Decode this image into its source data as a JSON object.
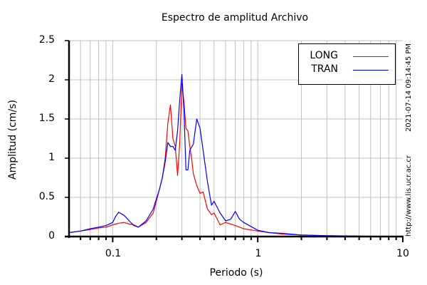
{
  "chart_data": {
    "type": "line",
    "title": "Espectro de amplitud Archivo",
    "xlabel": "Periodo (s)",
    "ylabel": "Amplitud (cm/s)",
    "xscale": "log",
    "xlim": [
      0.05,
      10
    ],
    "ylim": [
      0,
      2.5
    ],
    "grid": true,
    "legend_position": "upper right",
    "x_ticks": [
      "0.1",
      "1",
      "10"
    ],
    "y_ticks": [
      "0",
      "0.5",
      "1",
      "1.5",
      "2",
      "2.5"
    ],
    "series": [
      {
        "name": "LONG",
        "color": "#ff0000",
        "x": [
          0.05,
          0.06,
          0.07,
          0.08,
          0.09,
          0.1,
          0.11,
          0.12,
          0.13,
          0.14,
          0.15,
          0.17,
          0.19,
          0.2,
          0.21,
          0.22,
          0.23,
          0.24,
          0.25,
          0.26,
          0.27,
          0.28,
          0.29,
          0.3,
          0.31,
          0.32,
          0.33,
          0.34,
          0.35,
          0.36,
          0.38,
          0.4,
          0.42,
          0.45,
          0.48,
          0.5,
          0.55,
          0.6,
          0.7,
          0.8,
          1.0,
          1.2,
          1.5,
          2.0,
          3.0,
          5.0,
          10.0
        ],
        "values": [
          0.05,
          0.07,
          0.09,
          0.11,
          0.12,
          0.15,
          0.17,
          0.18,
          0.16,
          0.15,
          0.12,
          0.18,
          0.3,
          0.45,
          0.6,
          0.75,
          1.0,
          1.45,
          1.68,
          1.25,
          1.15,
          0.78,
          1.2,
          1.95,
          1.72,
          1.38,
          1.35,
          1.15,
          1.0,
          0.8,
          0.65,
          0.55,
          0.57,
          0.35,
          0.28,
          0.3,
          0.15,
          0.18,
          0.14,
          0.1,
          0.07,
          0.05,
          0.03,
          0.02,
          0.01,
          0.005,
          0.0
        ]
      },
      {
        "name": "TRAN",
        "color": "#0000ff",
        "x": [
          0.05,
          0.06,
          0.07,
          0.08,
          0.09,
          0.1,
          0.105,
          0.11,
          0.12,
          0.13,
          0.14,
          0.15,
          0.17,
          0.19,
          0.2,
          0.21,
          0.22,
          0.23,
          0.24,
          0.25,
          0.26,
          0.27,
          0.28,
          0.29,
          0.3,
          0.31,
          0.32,
          0.33,
          0.34,
          0.36,
          0.38,
          0.4,
          0.42,
          0.45,
          0.48,
          0.5,
          0.55,
          0.6,
          0.65,
          0.7,
          0.75,
          0.8,
          1.0,
          1.2,
          1.5,
          2.0,
          3.0,
          5.0,
          10.0
        ],
        "values": [
          0.05,
          0.07,
          0.1,
          0.12,
          0.14,
          0.18,
          0.26,
          0.31,
          0.27,
          0.2,
          0.14,
          0.12,
          0.2,
          0.35,
          0.48,
          0.6,
          0.75,
          0.95,
          1.2,
          1.15,
          1.15,
          1.1,
          1.35,
          1.75,
          2.07,
          1.6,
          0.85,
          0.85,
          1.1,
          1.18,
          1.5,
          1.38,
          1.1,
          0.7,
          0.4,
          0.45,
          0.3,
          0.2,
          0.22,
          0.32,
          0.22,
          0.18,
          0.08,
          0.05,
          0.04,
          0.02,
          0.01,
          0.005,
          0.0
        ]
      }
    ]
  },
  "side_text": {
    "timestamp": "2021-07-14 09:14:45 PM",
    "url": "http://www.lis.ucr.ac.cr"
  }
}
